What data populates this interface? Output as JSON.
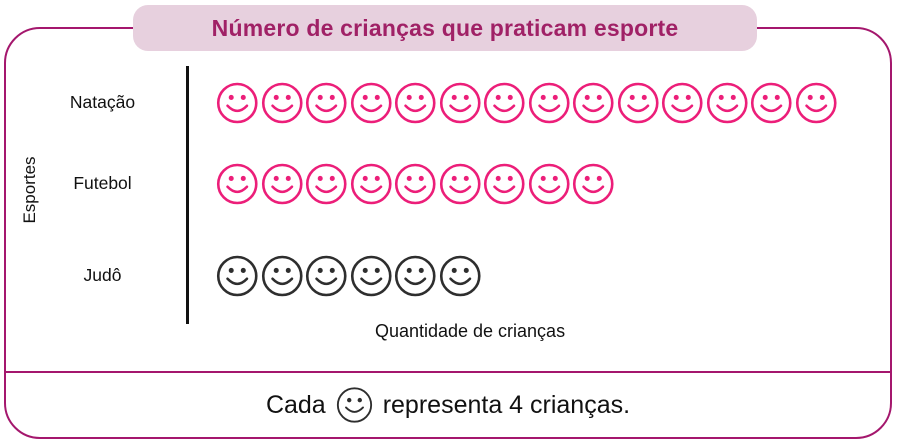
{
  "title": "Número de crianças que praticam esporte",
  "legend": {
    "prefix": "Cada",
    "icon": "smiley-face-icon",
    "suffix": "representa 4 crianças."
  },
  "colors": {
    "accent_pink": "#EC1E79",
    "frame_magenta": "#A4176D",
    "title_text": "#A02166",
    "banner_background": "#E7D0DE",
    "judo_icon_black": "#2E2E2E"
  },
  "chart_data": {
    "type": "pictograph",
    "equivalent_type": "bar",
    "title": "Número de crianças que praticam esporte",
    "categories": [
      "Natação",
      "Futebol",
      "Judô"
    ],
    "icon": "smiley-face",
    "icon_counts": [
      14,
      9,
      6
    ],
    "unit_per_icon": 4,
    "values_children": [
      56,
      36,
      24
    ],
    "series_colors": [
      "#EC1E79",
      "#EC1E79",
      "#2E2E2E"
    ],
    "xlabel": "Quantidade de crianças",
    "ylabel": "Esportes",
    "legend_note": "Cada 🙂 representa 4 crianças.",
    "grid": false,
    "legend_position": "bottom"
  }
}
